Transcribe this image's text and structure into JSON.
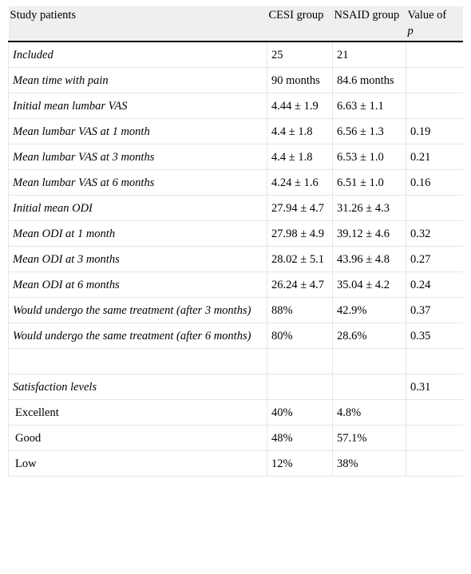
{
  "header": {
    "study_patients": "Study patients",
    "cesi_group": "CESI group",
    "nsaid_group": "NSAID group",
    "value_of": "Value of",
    "p": "p"
  },
  "rows": [
    {
      "label": "Included",
      "cesi": "25",
      "nsaid": "21",
      "p": ""
    },
    {
      "label": "Mean time with pain",
      "cesi": "90 months",
      "nsaid": "84.6 months",
      "p": ""
    },
    {
      "label": "Initial mean lumbar VAS",
      "cesi": "4.44 ± 1.9",
      "nsaid": "6.63 ± 1.1",
      "p": ""
    },
    {
      "label": "Mean lumbar VAS at 1 month",
      "cesi": "4.4 ± 1.8",
      "nsaid": "6.56 ± 1.3",
      "p": "0.19"
    },
    {
      "label": "Mean lumbar VAS at 3 months",
      "cesi": "4.4 ± 1.8",
      "nsaid": "6.53 ± 1.0",
      "p": "0.21"
    },
    {
      "label": "Mean lumbar VAS at 6 months",
      "cesi": "4.24 ± 1.6",
      "nsaid": "6.51 ± 1.0",
      "p": "0.16"
    },
    {
      "label": "Initial mean ODI",
      "cesi": "27.94 ± 4.7",
      "nsaid": "31.26 ± 4.3",
      "p": ""
    },
    {
      "label": "Mean ODI at 1 month",
      "cesi": "27.98 ± 4.9",
      "nsaid": "39.12 ± 4.6",
      "p": "0.32"
    },
    {
      "label": "Mean ODI at 3 months",
      "cesi": "28.02 ± 5.1",
      "nsaid": "43.96 ± 4.8",
      "p": "0.27"
    },
    {
      "label": "Mean ODI at 6 months",
      "cesi": "26.24 ± 4.7",
      "nsaid": "35.04 ± 4.2",
      "p": "0.24"
    },
    {
      "label": "Would undergo the same treatment (after 3 months)",
      "cesi": "88%",
      "nsaid": "42.9%",
      "p": "0.37"
    },
    {
      "label": "Would undergo the same treatment (after 6 months)",
      "cesi": "80%",
      "nsaid": "28.6%",
      "p": "0.35"
    },
    {
      "label": "",
      "cesi": "",
      "nsaid": "",
      "p": ""
    },
    {
      "label": "Satisfaction levels",
      "cesi": "",
      "nsaid": "",
      "p": "0.31"
    },
    {
      "label": "Excellent",
      "cesi": "40%",
      "nsaid": "4.8%",
      "p": ""
    },
    {
      "label": "Good",
      "cesi": "48%",
      "nsaid": "57.1%",
      "p": ""
    },
    {
      "label": "Low",
      "cesi": "12%",
      "nsaid": "38%",
      "p": ""
    }
  ]
}
